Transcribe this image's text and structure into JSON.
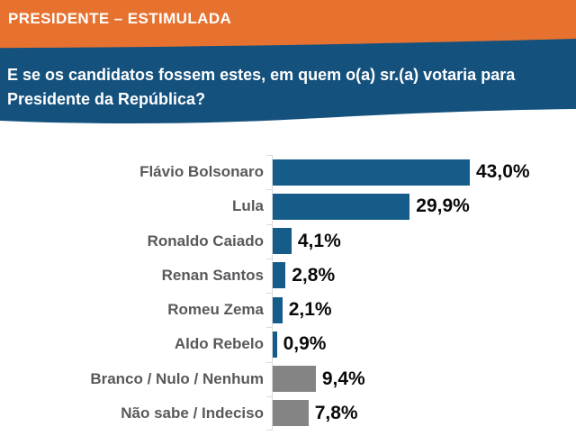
{
  "header": {
    "title": "PRESIDENTE – ESTIMULADA"
  },
  "question": {
    "text": "E se os candidatos fossem estes, em quem o(a) sr.(a) votaria para Presidente da República?"
  },
  "colors": {
    "header_orange": "#E7722F",
    "question_navy": "#15517D",
    "bar_blue": "#155C8B",
    "bar_gray": "#848484",
    "label_gray": "#58595B",
    "value_black": "#0A0A0A",
    "axis_gray": "#D9D9D9",
    "background": "#FFFFFF"
  },
  "chart_data": {
    "type": "bar",
    "orientation": "horizontal",
    "title": "PRESIDENTE – ESTIMULADA",
    "subtitle": "E se os candidatos fossem estes, em quem o(a) sr.(a) votaria para Presidente da República?",
    "categories": [
      "Flávio Bolsonaro",
      "Lula",
      "Ronaldo Caiado",
      "Renan Santos",
      "Romeu Zema",
      "Aldo Rebelo",
      "Branco / Nulo / Nenhum",
      "Não sabe / Indeciso"
    ],
    "values": [
      43.0,
      29.9,
      4.1,
      2.8,
      2.1,
      0.9,
      9.4,
      7.8
    ],
    "value_labels": [
      "43,0%",
      "29,9%",
      "4,1%",
      "2,8%",
      "2,1%",
      "0,9%",
      "9,4%",
      "7,8%"
    ],
    "bar_color_keys": [
      "bar_blue",
      "bar_blue",
      "bar_blue",
      "bar_blue",
      "bar_blue",
      "bar_blue",
      "bar_gray",
      "bar_gray"
    ],
    "xlim": [
      0,
      45
    ],
    "grid": false,
    "legend": false,
    "data_labels": "outside-end"
  }
}
